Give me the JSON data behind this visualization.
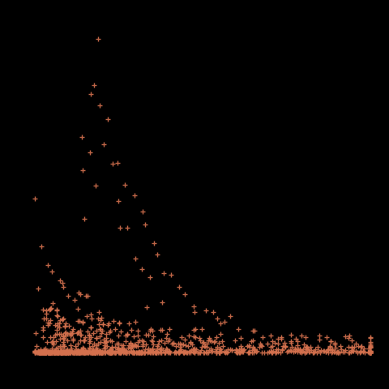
{
  "background_color": "#000000",
  "marker_color": "#D4714E",
  "marker": "+",
  "marker_size": 5,
  "marker_linewidth": 1.0,
  "figsize": [
    4.8,
    4.8
  ],
  "dpi": 100,
  "xlim": [
    0,
    520
  ],
  "ylim": [
    -2,
    120
  ],
  "seed": 17
}
